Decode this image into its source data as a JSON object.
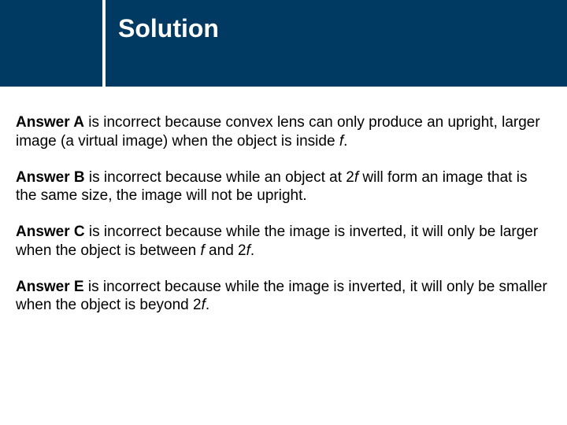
{
  "header": {
    "title": "Solution",
    "bg_color": "#003a63",
    "divider_color": "#ffffff",
    "title_color": "#ffffff",
    "title_fontsize": 32
  },
  "content": {
    "fontsize": 19,
    "text_color": "#000000",
    "answers": [
      {
        "label": "Answer A",
        "pre": " is incorrect because convex lens can only produce an upright, larger image (a virtual image) when the object is inside ",
        "ital1": "f",
        "post": "."
      },
      {
        "label": "Answer B",
        "pre": " is incorrect because while an object at 2",
        "ital1": "f",
        "mid": " will form an image that is the same size, the image will not be upright.",
        "post": ""
      },
      {
        "label": "Answer C",
        "pre": " is incorrect because while the image is inverted, it will only be larger when the object is between ",
        "ital1": "f",
        "mid": " and 2",
        "ital2": "f",
        "post": "."
      },
      {
        "label": "Answer E",
        "pre": "  is incorrect because while the image is inverted, it will only be smaller when the object is beyond 2",
        "ital1": "f",
        "post": "."
      }
    ]
  }
}
